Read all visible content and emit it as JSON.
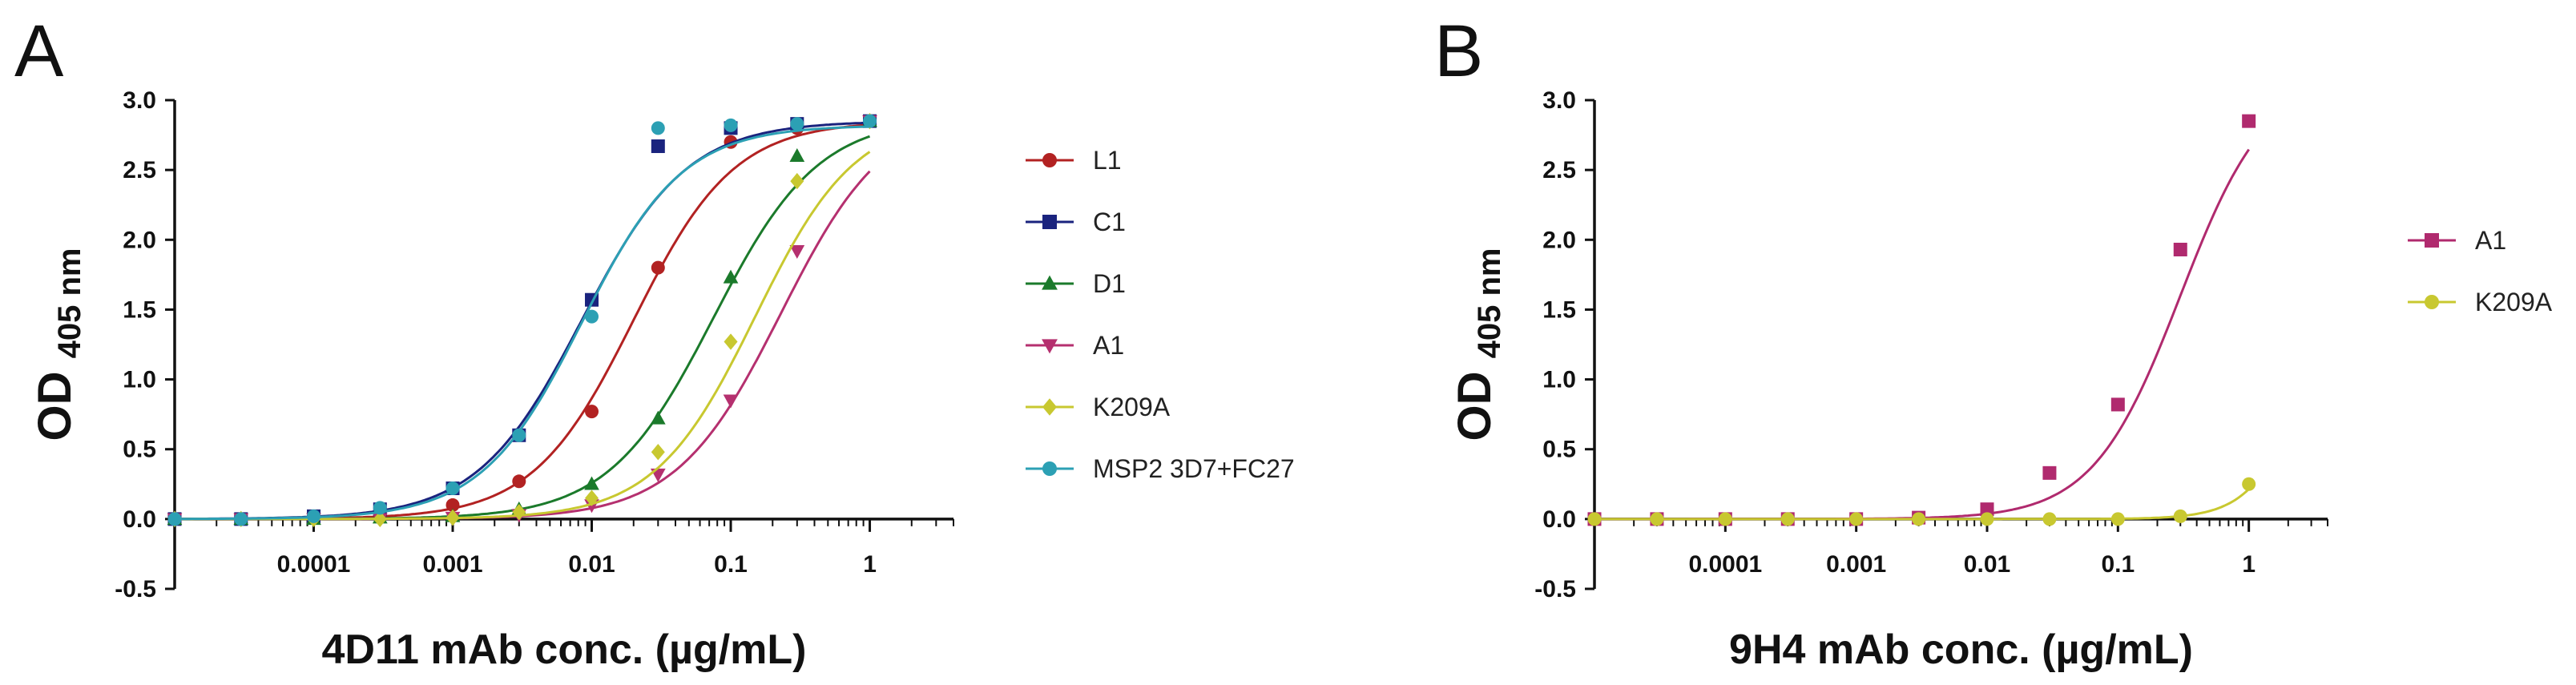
{
  "panels": [
    {
      "panel_label": "A",
      "chart_data": {
        "type": "line",
        "xscale": "log",
        "x": [
          1e-05,
          3e-05,
          0.0001,
          0.0003,
          0.001,
          0.003,
          0.01,
          0.03,
          0.1,
          0.3,
          1
        ],
        "x_tick_values": [
          0.0001,
          0.001,
          0.01,
          0.1,
          1
        ],
        "x_tick_labels": [
          "0.0001",
          "0.001",
          "0.01",
          "0.1",
          "1"
        ],
        "xlim": [
          1e-05,
          4
        ],
        "xlabel": "4D11 mAb conc. (µg/mL)",
        "ylabel_main": "OD",
        "ylabel_sub": "405 nm",
        "ylim": [
          -0.5,
          3.0
        ],
        "y_ticks": [
          "-0.5",
          "0.0",
          "0.5",
          "1.0",
          "1.5",
          "2.0",
          "2.5",
          "3.0"
        ],
        "legend_position": "right",
        "series": [
          {
            "name": "L1",
            "color": "#b22222",
            "marker": "circle",
            "values": [
              0.0,
              0.0,
              0.01,
              0.04,
              0.1,
              0.27,
              0.77,
              1.8,
              2.7,
              2.8,
              2.85
            ],
            "ec50": 0.02,
            "hill": 1.2,
            "top": 2.85
          },
          {
            "name": "C1",
            "color": "#1a237e",
            "marker": "square",
            "values": [
              0.0,
              0.0,
              0.02,
              0.07,
              0.22,
              0.6,
              1.57,
              2.67,
              2.8,
              2.83,
              2.85
            ],
            "ec50": 0.0085,
            "hill": 1.15,
            "top": 2.85
          },
          {
            "name": "D1",
            "color": "#1b7a2b",
            "marker": "triangle",
            "values": [
              0.0,
              0.0,
              0.0,
              0.01,
              0.02,
              0.07,
              0.25,
              0.72,
              1.73,
              2.6,
              2.85
            ],
            "ec50": 0.075,
            "hill": 1.15,
            "top": 2.88
          },
          {
            "name": "A1",
            "color": "#b5306f",
            "marker": "triangle-down",
            "values": [
              0.0,
              0.0,
              0.0,
              0.0,
              0.01,
              0.03,
              0.1,
              0.32,
              0.85,
              1.92,
              2.85
            ],
            "ec50": 0.23,
            "hill": 1.15,
            "top": 2.95
          },
          {
            "name": "K209A",
            "color": "#c8c830",
            "marker": "diamond",
            "values": [
              0.0,
              0.0,
              0.0,
              0.0,
              0.01,
              0.05,
              0.15,
              0.48,
              1.27,
              2.42,
              2.85
            ],
            "ec50": 0.15,
            "hill": 1.2,
            "top": 2.9
          },
          {
            "name": "MSP2 3D7+FC27",
            "color": "#2ca0b4",
            "marker": "circle",
            "values": [
              0.0,
              0.0,
              0.02,
              0.08,
              0.22,
              0.6,
              1.45,
              2.8,
              2.82,
              2.83,
              2.85
            ],
            "ec50": 0.0085,
            "hill": 1.2,
            "top": 2.82
          }
        ]
      }
    },
    {
      "panel_label": "B",
      "chart_data": {
        "type": "line",
        "xscale": "log",
        "x": [
          1e-05,
          3e-05,
          0.0001,
          0.0003,
          0.001,
          0.003,
          0.01,
          0.03,
          0.1,
          0.3,
          1
        ],
        "x_tick_values": [
          0.0001,
          0.001,
          0.01,
          0.1,
          1
        ],
        "x_tick_labels": [
          "0.0001",
          "0.001",
          "0.01",
          "0.1",
          "1"
        ],
        "xlim": [
          1e-05,
          4
        ],
        "xlabel": "9H4 mAb conc. (µg/mL)",
        "ylabel_main": "OD",
        "ylabel_sub": "405 nm",
        "ylim": [
          -0.5,
          3.0
        ],
        "y_ticks": [
          "-0.5",
          "0.0",
          "0.5",
          "1.0",
          "1.5",
          "2.0",
          "2.5",
          "3.0"
        ],
        "legend_position": "right",
        "series": [
          {
            "name": "A1",
            "color": "#b02a6e",
            "marker": "square",
            "values": [
              0.0,
              0.0,
              0.0,
              0.0,
              0.0,
              0.01,
              0.07,
              0.33,
              0.82,
              1.93,
              2.85
            ],
            "ec50": 0.3,
            "hill": 1.3,
            "top": 3.2
          },
          {
            "name": "K209A",
            "color": "#c8c830",
            "marker": "circle",
            "values": [
              0.0,
              0.0,
              0.0,
              0.0,
              0.0,
              0.0,
              0.0,
              0.0,
              0.0,
              0.02,
              0.25
            ],
            "ec50": 3.5,
            "hill": 2.0,
            "top": 2.85
          }
        ]
      }
    }
  ]
}
